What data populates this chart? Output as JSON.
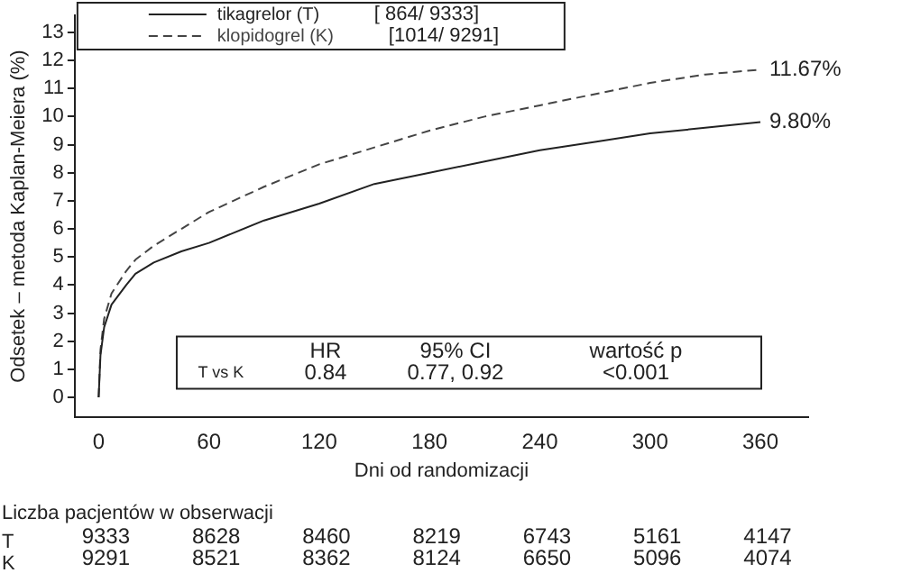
{
  "chart_data": {
    "type": "line",
    "xlabel": "Dni od randomizacji",
    "ylabel": "Odsetek – metoda Kaplan-Meiera (%)",
    "x": [
      0,
      1,
      3,
      7,
      15,
      20,
      30,
      45,
      60,
      90,
      120,
      150,
      180,
      210,
      240,
      270,
      300,
      330,
      360
    ],
    "series": [
      {
        "name": "tikagrelor (T)",
        "color": "#222222",
        "line_style": "solid",
        "values": [
          0,
          1.5,
          2.5,
          3.3,
          4.0,
          4.4,
          4.8,
          5.2,
          5.5,
          6.3,
          6.9,
          7.6,
          8.0,
          8.4,
          8.8,
          9.1,
          9.4,
          9.6,
          9.8
        ]
      },
      {
        "name": "klopidogrel (K)",
        "color": "#444444",
        "line_style": "dashed",
        "values": [
          0,
          1.7,
          2.8,
          3.7,
          4.5,
          4.9,
          5.4,
          6.0,
          6.6,
          7.5,
          8.3,
          8.9,
          9.5,
          10.0,
          10.4,
          10.8,
          11.2,
          11.5,
          11.67
        ]
      }
    ],
    "xlim": [
      -13,
      386
    ],
    "xticks": [
      0,
      60,
      120,
      180,
      240,
      300,
      360
    ],
    "ylim": [
      -0.7,
      13.6
    ],
    "yticks": [
      0,
      1,
      2,
      3,
      4,
      5,
      6,
      7,
      8,
      9,
      10,
      11,
      12,
      13
    ],
    "grid": false,
    "legend": "top left",
    "marker": "none",
    "annotations": [
      "[ 864/ 9333]",
      "[1014/ 9291]",
      {
        "text": "9.80%",
        "x": 360,
        "y": 9.8
      },
      {
        "text": "11.67%",
        "x": 360,
        "y": 11.67
      },
      "HR",
      "95% CI",
      "wartość p",
      "T vs K",
      "0.84",
      "0.77, 0.92",
      "<0.001",
      "Liczba pacjentów w obserwacji",
      "T",
      "9333",
      "8628",
      "8460",
      "8219",
      "6743",
      "5161",
      "4147",
      "K",
      "9291",
      "8521",
      "8362",
      "8124",
      "6650",
      "5096",
      "4074"
    ]
  }
}
